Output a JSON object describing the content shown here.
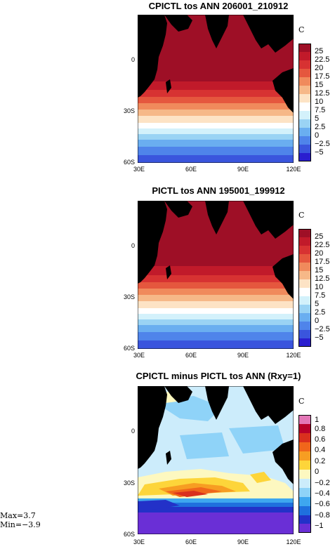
{
  "panels": [
    {
      "title": "CPICTL tos ANN 206001_210912",
      "unit": "C",
      "colorbar_labels": [
        "25",
        "22.5",
        "20",
        "17.5",
        "15",
        "12.5",
        "10",
        "7.5",
        "5",
        "2.5",
        "0",
        "−2.5",
        "−5"
      ]
    },
    {
      "title": "PICTL tos ANN 195001_199912",
      "unit": "C",
      "colorbar_labels": [
        "25",
        "22.5",
        "20",
        "17.5",
        "15",
        "12.5",
        "10",
        "7.5",
        "5",
        "2.5",
        "0",
        "−2.5",
        "−5"
      ]
    },
    {
      "title": "CPICTL minus PICTL tos ANN (Rxy=1)",
      "unit": "C",
      "colorbar_labels": [
        "1",
        "0.8",
        "0.6",
        "0.4",
        "0.2",
        "0",
        "−0.2",
        "−0.4",
        "−0.6",
        "−0.8",
        "−1"
      ]
    }
  ],
  "axes": {
    "y_labels": [
      "0",
      "30S",
      "60S"
    ],
    "x_labels": [
      "30E",
      "60E",
      "90E",
      "120E"
    ]
  },
  "stats": {
    "max": "Max=3.7",
    "min": "Min=−3.9"
  },
  "colors": {
    "land": "#000000",
    "sst_scale": [
      "#9e0f26",
      "#c11a2a",
      "#d73232",
      "#e5573e",
      "#f08a5c",
      "#f6b888",
      "#fde3c5",
      "#ffffff",
      "#d3f1fb",
      "#9ad3f4",
      "#6aaef0",
      "#4f84ea",
      "#3a55dd",
      "#2a1ecf"
    ],
    "diff_scale": [
      "#e377b7",
      "#b8002a",
      "#d9301e",
      "#f0661b",
      "#f79d22",
      "#fdd53a",
      "#fdf8c0",
      "#ccecfb",
      "#8fd3f8",
      "#3ea7ef",
      "#1f70de",
      "#2331c8",
      "#6a2fd6"
    ]
  }
}
